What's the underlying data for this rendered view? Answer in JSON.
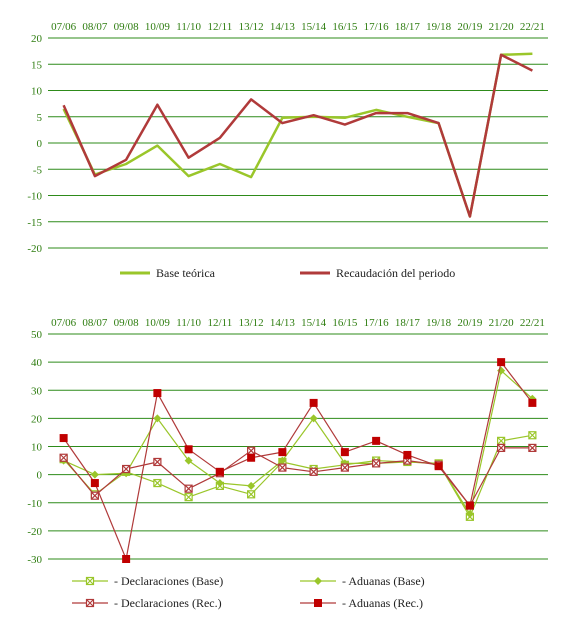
{
  "colors": {
    "green": "#9ac62a",
    "red": "#b03a3a",
    "marker_red": "#c00000",
    "grid": "#2e8b1a",
    "label": "#2e7d10"
  },
  "chart_data": [
    {
      "type": "line",
      "title": "",
      "xlabel": "",
      "ylabel": "",
      "categories": [
        "07/06",
        "08/07",
        "09/08",
        "10/09",
        "11/10",
        "12/11",
        "13/12",
        "14/13",
        "15/14",
        "16/15",
        "17/16",
        "18/17",
        "19/18",
        "20/19",
        "21/20",
        "22/21"
      ],
      "ylim": [
        -20,
        20
      ],
      "yticks": [
        20,
        15,
        10,
        5,
        0,
        -5,
        -10,
        -15,
        -20
      ],
      "grid": true,
      "legend_position": "bottom",
      "series": [
        {
          "name": "Base teórica",
          "color": "#9ac62a",
          "values": [
            6.5,
            -6.0,
            -4.0,
            -0.5,
            -6.3,
            -4.0,
            -6.5,
            4.8,
            5.0,
            4.8,
            6.3,
            5.0,
            3.8,
            -14.0,
            16.8,
            17.0
          ]
        },
        {
          "name": "Recaudación del periodo",
          "color": "#b03a3a",
          "values": [
            7.2,
            -6.3,
            -3.2,
            7.3,
            -2.8,
            1.0,
            8.3,
            3.8,
            5.3,
            3.5,
            5.7,
            5.7,
            3.8,
            -14.0,
            16.8,
            13.8
          ]
        }
      ]
    },
    {
      "type": "line",
      "title": "",
      "xlabel": "",
      "ylabel": "",
      "categories": [
        "07/06",
        "08/07",
        "09/08",
        "10/09",
        "11/10",
        "12/11",
        "13/12",
        "14/13",
        "15/14",
        "16/15",
        "17/16",
        "18/17",
        "19/18",
        "20/19",
        "21/20",
        "22/21"
      ],
      "ylim": [
        -30,
        50
      ],
      "yticks": [
        50,
        40,
        30,
        20,
        10,
        0,
        -10,
        -20,
        -30
      ],
      "grid": true,
      "legend_position": "bottom",
      "series": [
        {
          "name": "- Declaraciones (Base)",
          "color": "#9ac62a",
          "marker": "x-square",
          "values": [
            5.5,
            -7.0,
            1.0,
            -3.0,
            -8.0,
            -4.0,
            -7.0,
            4.5,
            2.0,
            3.5,
            5.0,
            4.5,
            4.0,
            -15.0,
            12.0,
            14.0
          ]
        },
        {
          "name": "- Aduanas (Base)",
          "color": "#9ac62a",
          "marker": "diamond",
          "values": [
            5.0,
            0.0,
            0.5,
            20.0,
            5.0,
            -3.0,
            -4.0,
            5.0,
            20.0,
            4.0,
            4.0,
            4.5,
            4.0,
            -14.0,
            37.0,
            27.0
          ]
        },
        {
          "name": "- Declaraciones (Rec.)",
          "color": "#b03a3a",
          "marker": "x-square",
          "values": [
            6.0,
            -7.5,
            2.0,
            4.5,
            -5.0,
            0.5,
            8.5,
            2.5,
            1.0,
            2.5,
            4.0,
            5.0,
            3.5,
            -11.0,
            9.5,
            9.5
          ]
        },
        {
          "name": "- Aduanas (Rec.)",
          "color": "#b03a3a",
          "marker": "square",
          "values": [
            13.0,
            -3.0,
            -30.0,
            29.0,
            9.0,
            1.0,
            6.0,
            8.0,
            25.5,
            8.0,
            12.0,
            7.0,
            3.0,
            -11.0,
            40.0,
            25.5
          ]
        }
      ]
    }
  ]
}
